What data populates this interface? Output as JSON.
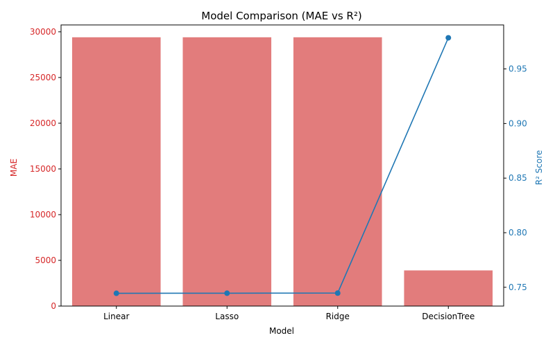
{
  "chart_data": {
    "type": "bar",
    "title": "Model Comparison (MAE vs R²)",
    "xlabel": "Model",
    "categories": [
      "Linear",
      "Lasso",
      "Ridge",
      "DecisionTree"
    ],
    "series": [
      {
        "name": "MAE",
        "kind": "bar",
        "axis": "left",
        "values": [
          29400,
          29400,
          29400,
          3900
        ],
        "color": "#e27c7c"
      },
      {
        "name": "R² Score",
        "kind": "line",
        "axis": "right",
        "values": [
          0.7445,
          0.7446,
          0.7447,
          0.9785
        ],
        "color": "#1f77b4"
      }
    ],
    "y_left": {
      "label": "MAE",
      "color": "#d62728",
      "ylim": [
        0,
        30750
      ],
      "ticks": [
        0,
        5000,
        10000,
        15000,
        20000,
        25000,
        30000
      ]
    },
    "y_right": {
      "label": "R² Score",
      "color": "#1f77b4",
      "ylim": [
        0.7328,
        0.9903
      ],
      "ticks": [
        0.75,
        0.8,
        0.85,
        0.9,
        0.95
      ],
      "tick_labels": [
        "0.75",
        "0.80",
        "0.85",
        "0.90",
        "0.95"
      ]
    },
    "grid": false,
    "legend": "none"
  }
}
